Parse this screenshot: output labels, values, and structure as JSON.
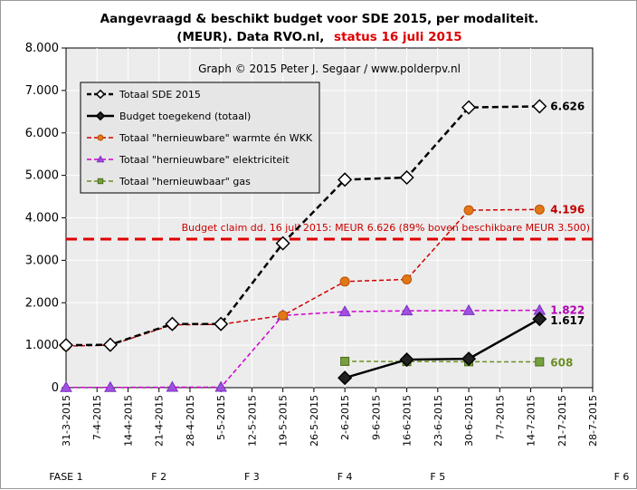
{
  "chart_data": {
    "type": "line",
    "title_line1": "Aangevraagd & beschikt budget voor SDE 2015, per modaliteit.",
    "title_line2_black": "(MEUR).  Data RVO.nl,",
    "title_line2_red": "status 16 juli 2015",
    "credit": "Graph  © 2015 Peter J. Segaar / www.polderpv.nl",
    "claim_label": "Budget claim dd. 16 juli 2015: MEUR 6.626 (89% boven beschikbare MEUR 3.500)",
    "claim_value": 3500,
    "ylim": [
      0,
      8000
    ],
    "y_ticks": [
      "0",
      "1.000",
      "2.000",
      "3.000",
      "4.000",
      "5.000",
      "6.000",
      "7.000",
      "8.000"
    ],
    "y_tick_values": [
      0,
      1000,
      2000,
      3000,
      4000,
      5000,
      6000,
      7000,
      8000
    ],
    "x_ticks": [
      "31-3-2015",
      "7-4-2015",
      "14-4-2015",
      "21-4-2015",
      "28-4-2015",
      "5-5-2015",
      "12-5-2015",
      "19-5-2015",
      "26-5-2015",
      "2-6-2015",
      "9-6-2015",
      "16-6-2015",
      "23-6-2015",
      "30-6-2015",
      "7-7-2015",
      "14-7-2015",
      "21-7-2015",
      "28-7-2015"
    ],
    "xlim": [
      "2015-03-31",
      "2015-07-28"
    ],
    "phases": [
      {
        "label": "FASE 1",
        "date": "2015-03-31"
      },
      {
        "label": "F 2",
        "date": "2015-04-21"
      },
      {
        "label": "F 3",
        "date": "2015-05-12"
      },
      {
        "label": "F 4",
        "date": "2015-06-02"
      },
      {
        "label": "F 5",
        "date": "2015-06-23"
      },
      {
        "label": "F 6",
        "date": "2015-08-04"
      }
    ],
    "series": [
      {
        "name": "Totaal SDE 2015",
        "color": "#000000",
        "dashed": true,
        "marker": "diamond-open",
        "x": [
          "2015-03-31",
          "2015-04-10",
          "2015-04-24",
          "2015-05-05",
          "2015-05-19",
          "2015-06-02",
          "2015-06-16",
          "2015-06-30",
          "2015-07-16"
        ],
        "y": [
          1000,
          1010,
          1500,
          1500,
          3400,
          4900,
          4950,
          6600,
          6626
        ],
        "end_label": "6.626"
      },
      {
        "name": "Budget toegekend (totaal)",
        "color": "#000000",
        "dashed": false,
        "marker": "diamond-filled",
        "x": [
          "2015-06-02",
          "2015-06-16",
          "2015-06-30",
          "2015-07-16"
        ],
        "y": [
          230,
          660,
          680,
          1617
        ],
        "end_label": "1.617"
      },
      {
        "name": "Totaal \"hernieuwbare\" warmte én WKK",
        "color": "#cc0000",
        "dashed": true,
        "marker": "circle",
        "marker_fill": "#e07818",
        "x": [
          "2015-03-31",
          "2015-04-10",
          "2015-04-24",
          "2015-05-05",
          "2015-05-19",
          "2015-06-02",
          "2015-06-16",
          "2015-06-30",
          "2015-07-16"
        ],
        "y": [
          980,
          1000,
          1480,
          1490,
          1700,
          2500,
          2550,
          4180,
          4196
        ],
        "end_label": "4.196"
      },
      {
        "name": "Totaal \"hernieuwbare\" elektriciteit",
        "color": "#cc00cc",
        "dashed": true,
        "marker": "triangle",
        "marker_fill": "#a050e0",
        "x": [
          "2015-03-31",
          "2015-04-10",
          "2015-04-24",
          "2015-05-05",
          "2015-05-19",
          "2015-06-02",
          "2015-06-16",
          "2015-06-30",
          "2015-07-16"
        ],
        "y": [
          5,
          5,
          10,
          10,
          1700,
          1790,
          1810,
          1815,
          1822
        ],
        "end_label": "1.822"
      },
      {
        "name": "Totaal \"hernieuwbaar\" gas",
        "color": "#6b8e23",
        "dashed": true,
        "marker": "square",
        "marker_fill": "#77a040",
        "x": [
          "2015-06-02",
          "2015-06-16",
          "2015-06-30",
          "2015-07-16"
        ],
        "y": [
          620,
          615,
          610,
          608
        ],
        "end_label": "608"
      }
    ],
    "end_label_colors": [
      "#000000",
      "#000000",
      "#c00000",
      "#b000b0",
      "#6b8e23"
    ]
  }
}
